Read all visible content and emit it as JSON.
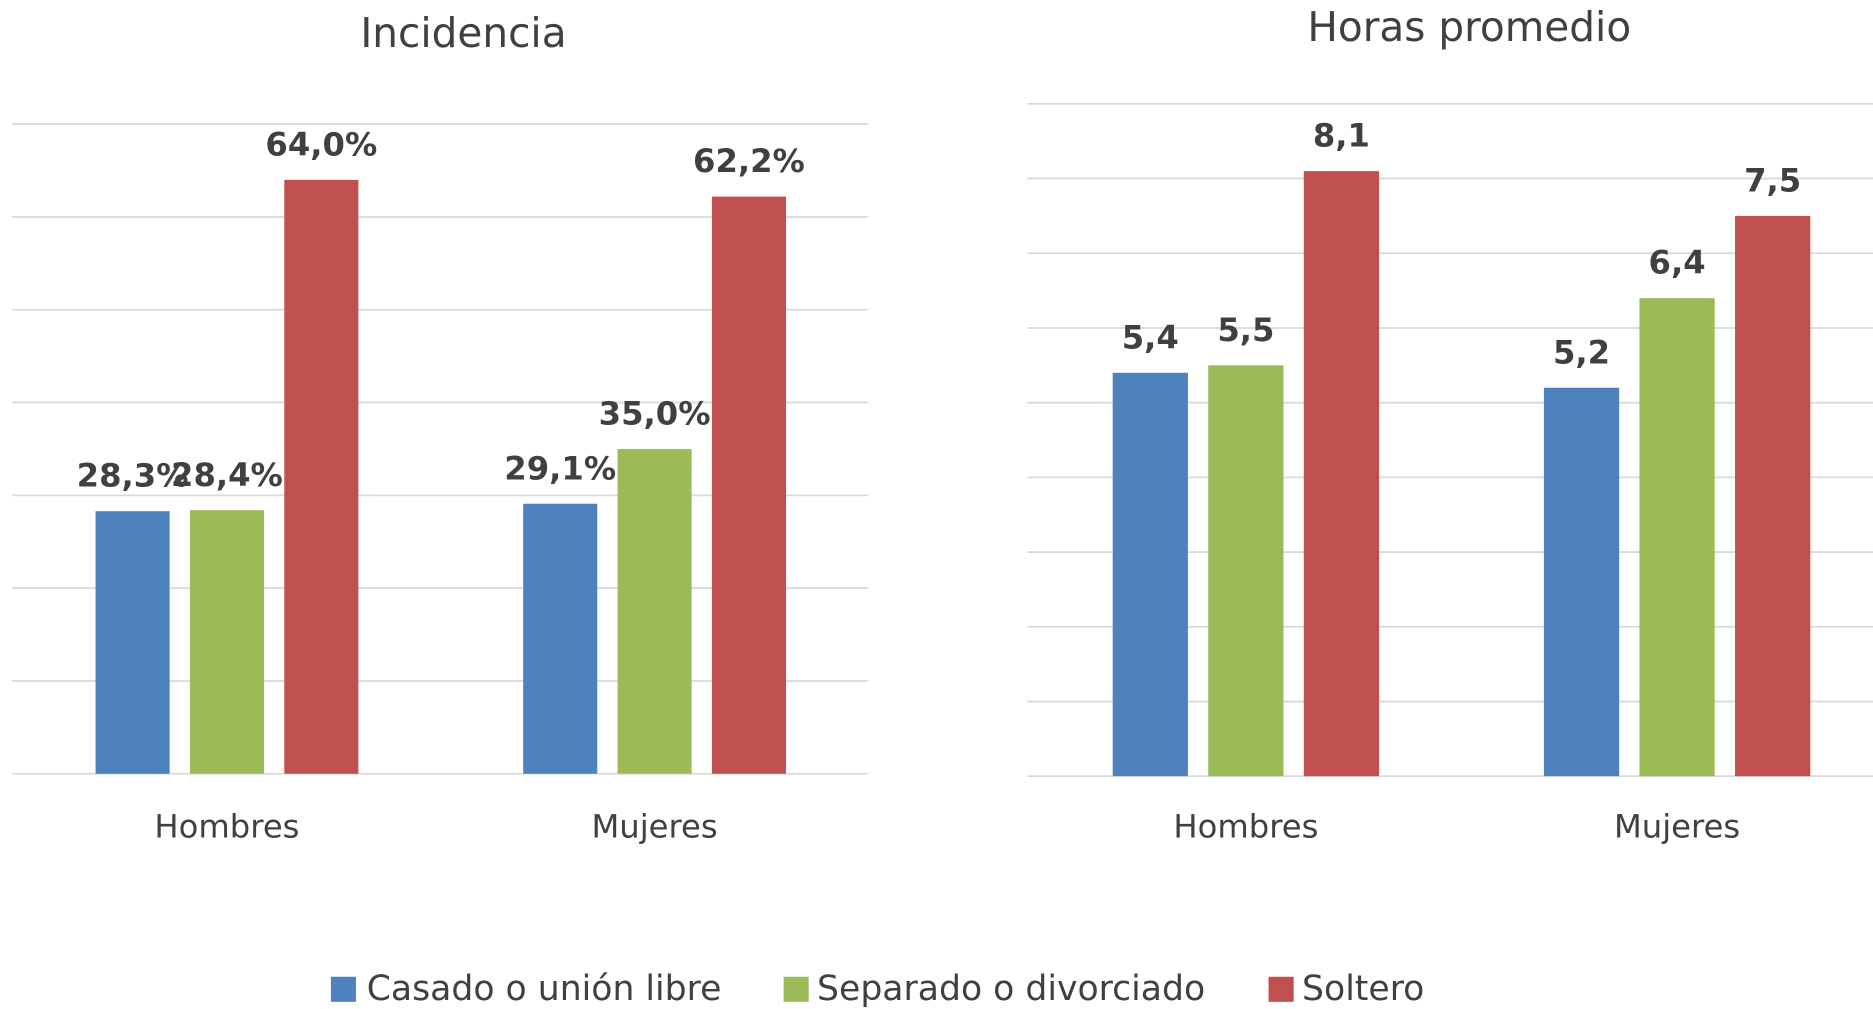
{
  "chart_data": [
    {
      "type": "bar",
      "title": "Incidencia",
      "categories": [
        "Hombres",
        "Mujeres"
      ],
      "series": [
        {
          "name": "Casado o unión libre",
          "color": "#4f81bd",
          "values": [
            28.3,
            29.1
          ],
          "value_labels": [
            "28,3%",
            "29,1%"
          ]
        },
        {
          "name": "Separado o divorciado",
          "color": "#9bbb59",
          "values": [
            28.4,
            35.0
          ],
          "value_labels": [
            "28,4%",
            "35,0%"
          ]
        },
        {
          "name": "Soltero",
          "color": "#c0504d",
          "values": [
            64.0,
            62.2
          ],
          "value_labels": [
            "64,0%",
            "62,2%"
          ]
        }
      ],
      "ylim": [
        0,
        70
      ],
      "yticks": [
        0,
        10,
        20,
        30,
        40,
        50,
        60,
        70
      ],
      "grid": true
    },
    {
      "type": "bar",
      "title": "Horas promedio",
      "categories": [
        "Hombres",
        "Mujeres"
      ],
      "series": [
        {
          "color": "#4f81bd",
          "values": [
            5.4,
            5.2
          ],
          "value_labels": [
            "5,4",
            "5,2"
          ]
        },
        {
          "color": "#9bbb59",
          "values": [
            5.5,
            6.4
          ],
          "value_labels": [
            "5,5",
            "6,4"
          ]
        },
        {
          "color": "#c0504d",
          "values": [
            8.1,
            7.5
          ],
          "value_labels": [
            "8,1",
            "7,5"
          ]
        }
      ],
      "ylim": [
        0,
        9
      ],
      "yticks": [
        0,
        1,
        2,
        3,
        4,
        5,
        6,
        7,
        8,
        9
      ],
      "grid": true
    }
  ]
}
